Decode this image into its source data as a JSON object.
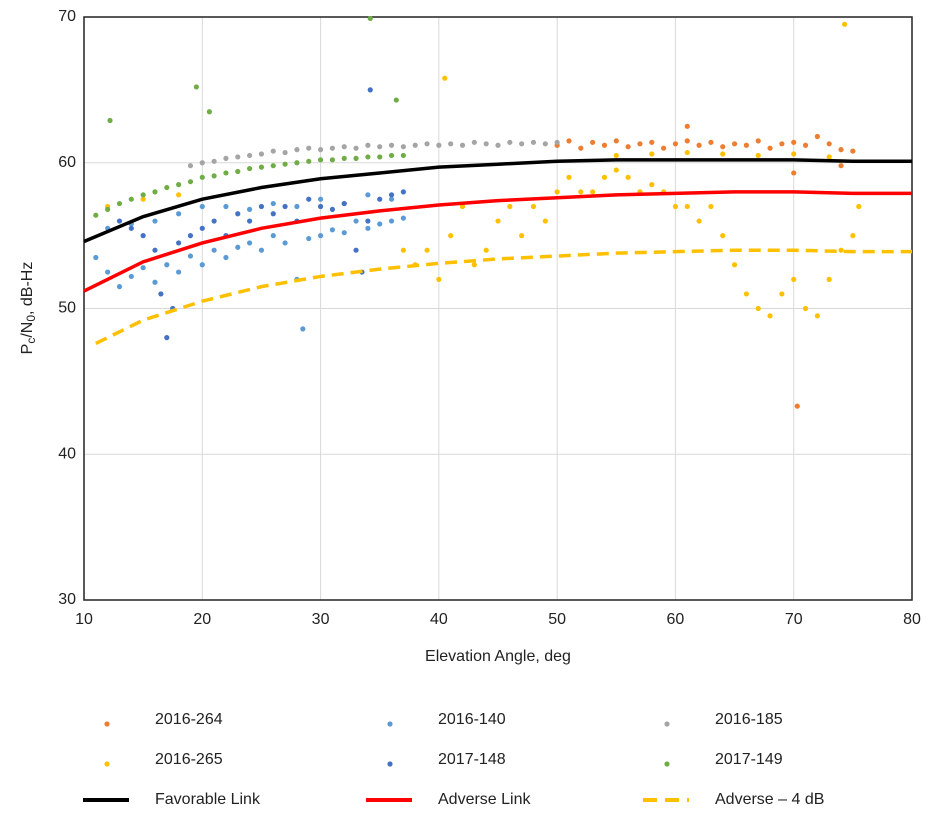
{
  "chart_data": {
    "type": "scatter",
    "x_label": "Elevation Angle, deg",
    "y_label": [
      "P",
      "c",
      "/N",
      "0",
      ", dB-Hz"
    ],
    "xlim": [
      10,
      80
    ],
    "ylim": [
      30,
      70
    ],
    "xticks": [
      10,
      20,
      30,
      40,
      50,
      60,
      70,
      80
    ],
    "yticks": [
      30,
      40,
      50,
      60,
      70
    ],
    "grid": true,
    "legend": "bottom",
    "series": [
      {
        "name": "2016-264",
        "kind": "scatter",
        "color": "#ed7d31",
        "x": [
          50,
          51,
          52,
          53,
          54,
          55,
          56,
          57,
          58,
          59,
          60,
          61,
          62,
          63,
          64,
          65,
          66,
          67,
          68,
          69,
          70,
          71,
          72,
          73,
          74,
          75,
          70.3,
          61,
          70,
          74
        ],
        "y": [
          61.2,
          61.5,
          61.0,
          61.4,
          61.2,
          61.5,
          61.1,
          61.3,
          61.4,
          61.0,
          61.3,
          61.5,
          61.2,
          61.4,
          61.1,
          61.3,
          61.2,
          61.5,
          61.0,
          61.3,
          61.4,
          61.2,
          61.8,
          61.3,
          60.9,
          60.8,
          43.3,
          62.5,
          59.3,
          59.8
        ]
      },
      {
        "name": "2016-140",
        "kind": "scatter",
        "color": "#5b9bd5",
        "x": [
          11,
          12,
          13,
          14,
          15,
          16,
          17,
          18,
          19,
          20,
          21,
          22,
          23,
          24,
          25,
          26,
          27,
          28,
          28.5,
          29,
          30,
          31,
          32,
          33,
          34,
          35,
          36,
          37,
          12,
          14,
          16,
          18,
          20,
          22,
          24,
          26,
          28,
          30,
          32,
          34,
          36
        ],
        "y": [
          53.5,
          52.5,
          51.5,
          52.2,
          52.8,
          51.8,
          53.0,
          52.5,
          53.6,
          53.0,
          54.0,
          53.5,
          54.2,
          54.5,
          54.0,
          55.0,
          54.5,
          52.0,
          48.6,
          54.8,
          55.0,
          55.4,
          55.2,
          56.0,
          55.5,
          55.8,
          56.0,
          56.2,
          55.5,
          55.8,
          56.0,
          56.5,
          57.0,
          57.0,
          56.8,
          57.2,
          57.0,
          57.5,
          57.2,
          57.8,
          57.5
        ]
      },
      {
        "name": "2016-185",
        "kind": "scatter",
        "color": "#a5a5a5",
        "x": [
          19,
          20,
          21,
          22,
          23,
          24,
          25,
          26,
          27,
          28,
          29,
          30,
          31,
          32,
          33,
          34,
          35,
          36,
          37,
          38,
          39,
          40,
          41,
          42,
          43,
          44,
          45,
          46,
          47,
          48,
          49,
          50
        ],
        "y": [
          59.8,
          60.0,
          60.1,
          60.3,
          60.4,
          60.5,
          60.6,
          60.8,
          60.7,
          60.9,
          61.0,
          60.9,
          61.0,
          61.1,
          61.0,
          61.2,
          61.1,
          61.2,
          61.1,
          61.2,
          61.3,
          61.2,
          61.3,
          61.2,
          61.4,
          61.3,
          61.2,
          61.4,
          61.3,
          61.4,
          61.3,
          61.4
        ]
      },
      {
        "name": "2016-265",
        "kind": "scatter",
        "color": "#ffc000",
        "x": [
          37,
          38,
          39,
          40,
          41,
          42,
          43,
          44,
          45,
          46,
          47,
          48,
          49,
          50,
          51,
          52,
          53,
          54,
          55,
          56,
          57,
          58,
          59,
          60,
          61,
          62,
          63,
          64,
          65,
          66,
          67,
          68,
          69,
          70,
          71,
          72,
          73,
          74,
          75,
          75.5,
          55,
          58,
          61,
          64,
          67,
          70,
          73,
          40.5,
          74.3,
          12,
          15,
          18
        ],
        "y": [
          54,
          53,
          54,
          52,
          55,
          57,
          53,
          54,
          56,
          57,
          55,
          57,
          56,
          58,
          59,
          58,
          58,
          59,
          59.5,
          59,
          58,
          58.5,
          58,
          57,
          57,
          56,
          57,
          55,
          53,
          51,
          50,
          49.5,
          51,
          52,
          50,
          49.5,
          52,
          54,
          55,
          57,
          60.5,
          60.6,
          60.7,
          60.6,
          60.5,
          60.6,
          60.4,
          65.8,
          69.5,
          57,
          57.5,
          57.8
        ]
      },
      {
        "name": "2017-148",
        "kind": "scatter",
        "color": "#4472c4",
        "x": [
          13,
          14,
          15,
          16,
          16.5,
          17,
          17.5,
          18,
          19,
          20,
          21,
          22,
          23,
          24,
          25,
          26,
          27,
          28,
          29,
          30,
          31,
          32,
          33,
          33.5,
          34,
          35,
          36,
          37,
          34.2
        ],
        "y": [
          56,
          55.5,
          55,
          54,
          51,
          48,
          50,
          54.5,
          55,
          55.5,
          56,
          55,
          56.5,
          56,
          57,
          56.5,
          57,
          56,
          57.5,
          57,
          56.8,
          57.2,
          54,
          52.5,
          56,
          57.5,
          57.8,
          58,
          65
        ]
      },
      {
        "name": "2017-149",
        "kind": "scatter",
        "color": "#70ad47",
        "x": [
          11,
          12,
          13,
          14,
          15,
          16,
          17,
          18,
          19,
          20,
          21,
          22,
          23,
          24,
          25,
          26,
          27,
          28,
          29,
          30,
          31,
          32,
          33,
          34,
          35,
          36,
          37,
          12.2,
          19.5,
          20.6,
          34.2,
          36.4
        ],
        "y": [
          56.4,
          56.8,
          57.2,
          57.5,
          57.8,
          58.0,
          58.3,
          58.5,
          58.7,
          59.0,
          59.1,
          59.3,
          59.4,
          59.6,
          59.7,
          59.8,
          59.9,
          60.0,
          60.1,
          60.2,
          60.2,
          60.3,
          60.3,
          60.4,
          60.4,
          60.5,
          60.5,
          62.9,
          65.2,
          63.5,
          69.9,
          64.3
        ]
      },
      {
        "name": "Favorable Link",
        "kind": "line",
        "color": "#000000",
        "x": [
          10,
          15,
          20,
          25,
          30,
          35,
          40,
          45,
          50,
          55,
          60,
          65,
          70,
          75,
          80
        ],
        "y": [
          54.6,
          56.3,
          57.5,
          58.3,
          58.9,
          59.3,
          59.7,
          59.9,
          60.1,
          60.2,
          60.2,
          60.2,
          60.2,
          60.1,
          60.1
        ]
      },
      {
        "name": "Adverse Link",
        "kind": "line",
        "color": "#ff0000",
        "x": [
          10,
          15,
          20,
          25,
          30,
          35,
          40,
          45,
          50,
          55,
          60,
          65,
          70,
          75,
          80
        ],
        "y": [
          51.2,
          53.2,
          54.5,
          55.5,
          56.2,
          56.7,
          57.1,
          57.4,
          57.6,
          57.8,
          57.9,
          58.0,
          58.0,
          57.9,
          57.9
        ]
      },
      {
        "name": "Adverse – 4 dB",
        "kind": "dashed",
        "color": "#ffc000",
        "x": [
          11,
          15,
          20,
          25,
          30,
          35,
          40,
          45,
          50,
          55,
          60,
          65,
          70,
          75,
          80
        ],
        "y": [
          47.6,
          49.2,
          50.5,
          51.5,
          52.2,
          52.7,
          53.1,
          53.4,
          53.6,
          53.8,
          53.9,
          54.0,
          54.0,
          53.9,
          53.9
        ]
      }
    ]
  }
}
